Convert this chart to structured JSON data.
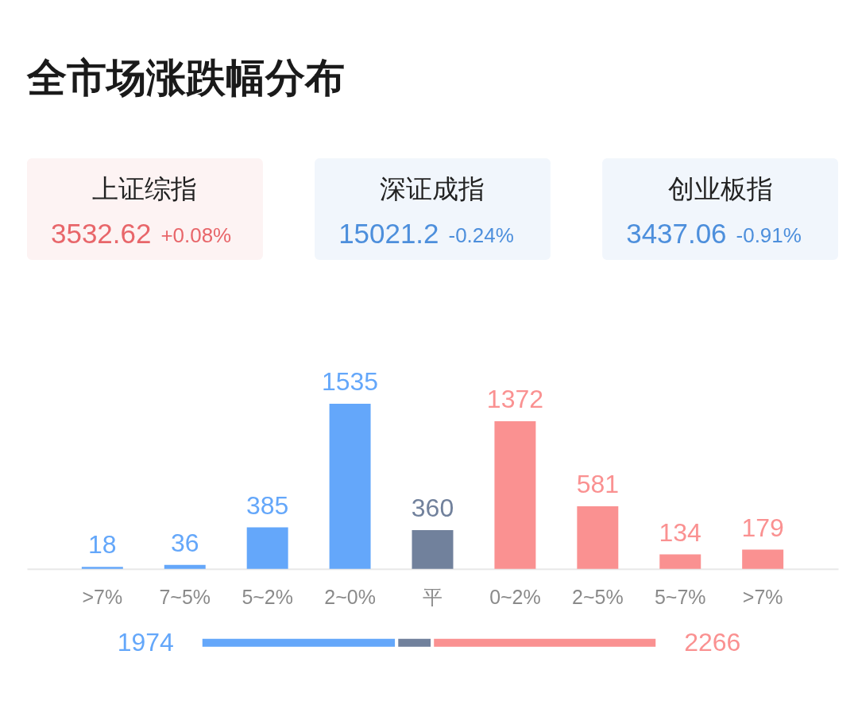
{
  "chart_data": [
    {
      "type": "other",
      "title": "全市场涨跌幅分布",
      "categories": [
        "上证综指",
        "深证成指",
        "创业板指"
      ],
      "values": [
        3532.62,
        15021.2,
        3437.06
      ],
      "data_labels": true,
      "annotations": [
        "+0.08%",
        "-0.24%",
        "-0.91%"
      ],
      "colors": [
        "#e8666a",
        "#4d8fdc",
        "#4d8fdc"
      ]
    },
    {
      "type": "bar",
      "categories": [
        ">7%",
        "7~5%",
        "5~2%",
        "2~0%",
        "平",
        "0~2%",
        "2~5%",
        "5~7%",
        ">7%"
      ],
      "values": [
        18,
        36,
        385,
        1535,
        360,
        1372,
        581,
        134,
        179
      ],
      "colors": [
        "#64a7fa",
        "#64a7fa",
        "#64a7fa",
        "#64a7fa",
        "#71819c",
        "#fa9191",
        "#fa9191",
        "#fa9191",
        "#fa9191"
      ],
      "data_labels": true,
      "tick_labels": "x"
    },
    {
      "type": "bar",
      "orientation": "horizontal",
      "stacked": true,
      "categories": [
        null
      ],
      "tick_labels": false,
      "series": [
        {
          "color": "#64a7fa",
          "values": [
            1974
          ],
          "value_labels": [
            "1974"
          ]
        },
        {
          "color": "#71819c",
          "values": [
            360
          ],
          "value_labels": [
            null
          ]
        },
        {
          "color": "#fa9191",
          "values": [
            2266
          ],
          "value_labels": [
            "2266"
          ]
        }
      ]
    }
  ]
}
